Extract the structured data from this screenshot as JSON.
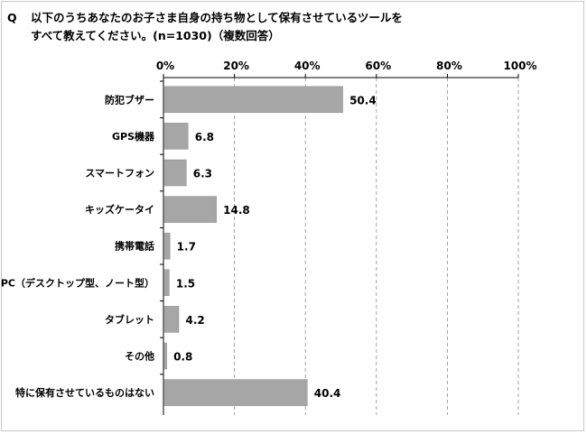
{
  "question": {
    "marker": "Q",
    "line1": "以下のうちあなたのお子さま自身の持ち物として保有させているツールを",
    "line2": "すべて教えてください。(n=1030)（複数回答）"
  },
  "colors": {
    "bar": "#a6a6a6",
    "bar_stroke": "#8c8c8c",
    "axis": "#000000",
    "grid": "#8c8c8c"
  },
  "chart_data": {
    "type": "bar",
    "orientation": "horizontal",
    "categories": [
      "防犯ブザー",
      "GPS機器",
      "スマートフォン",
      "キッズケータイ",
      "携帯電話",
      "PC（デスクトップ型、ノート型）",
      "タブレット",
      "その他",
      "特に保有させているものはない"
    ],
    "values": [
      50.4,
      6.8,
      6.3,
      14.8,
      1.7,
      1.5,
      4.2,
      0.8,
      40.4
    ],
    "value_labels": [
      "50.4",
      "6.8",
      "6.3",
      "14.8",
      "1.7",
      "1.5",
      "4.2",
      "0.8",
      "40.4"
    ],
    "xlim": [
      0,
      100
    ],
    "ticks": [
      0,
      20,
      40,
      60,
      80,
      100
    ],
    "tick_labels": [
      "0%",
      "20%",
      "40%",
      "60%",
      "80%",
      "100%"
    ],
    "grid": "dashed vertical",
    "axis_position": "top",
    "title": "",
    "xlabel": "",
    "ylabel": ""
  }
}
